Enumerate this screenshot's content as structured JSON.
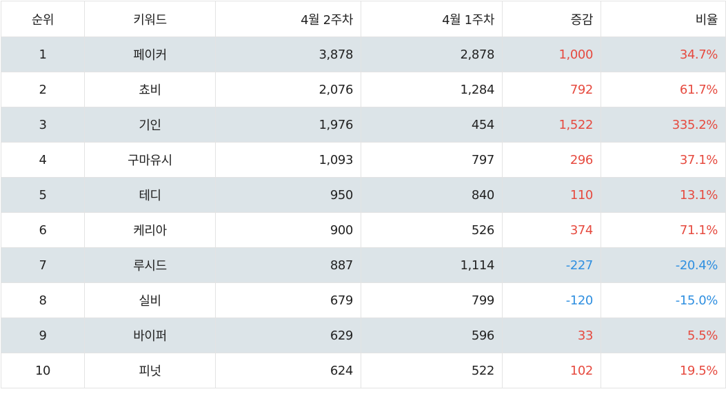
{
  "header": {
    "rank": "순위",
    "keyword": "키워드",
    "week2": "4월 2주차",
    "week1": "4월 1주차",
    "change": "증감",
    "ratio": "비율"
  },
  "colors": {
    "positive": "#e64a3f",
    "negative": "#2f8fe0",
    "shaded_row": "#dce4e8"
  },
  "rows": [
    {
      "rank": "1",
      "keyword": "페이커",
      "week2": "3,878",
      "week1": "2,878",
      "change": "1,000",
      "ratio": "34.7%",
      "trend": "pos"
    },
    {
      "rank": "2",
      "keyword": "쵸비",
      "week2": "2,076",
      "week1": "1,284",
      "change": "792",
      "ratio": "61.7%",
      "trend": "pos"
    },
    {
      "rank": "3",
      "keyword": "기인",
      "week2": "1,976",
      "week1": "454",
      "change": "1,522",
      "ratio": "335.2%",
      "trend": "pos"
    },
    {
      "rank": "4",
      "keyword": "구마유시",
      "week2": "1,093",
      "week1": "797",
      "change": "296",
      "ratio": "37.1%",
      "trend": "pos"
    },
    {
      "rank": "5",
      "keyword": "테디",
      "week2": "950",
      "week1": "840",
      "change": "110",
      "ratio": "13.1%",
      "trend": "pos"
    },
    {
      "rank": "6",
      "keyword": "케리아",
      "week2": "900",
      "week1": "526",
      "change": "374",
      "ratio": "71.1%",
      "trend": "pos"
    },
    {
      "rank": "7",
      "keyword": "루시드",
      "week2": "887",
      "week1": "1,114",
      "change": "-227",
      "ratio": "-20.4%",
      "trend": "neg"
    },
    {
      "rank": "8",
      "keyword": "실비",
      "week2": "679",
      "week1": "799",
      "change": "-120",
      "ratio": "-15.0%",
      "trend": "neg"
    },
    {
      "rank": "9",
      "keyword": "바이퍼",
      "week2": "629",
      "week1": "596",
      "change": "33",
      "ratio": "5.5%",
      "trend": "pos"
    },
    {
      "rank": "10",
      "keyword": "피넛",
      "week2": "624",
      "week1": "522",
      "change": "102",
      "ratio": "19.5%",
      "trend": "pos"
    }
  ]
}
